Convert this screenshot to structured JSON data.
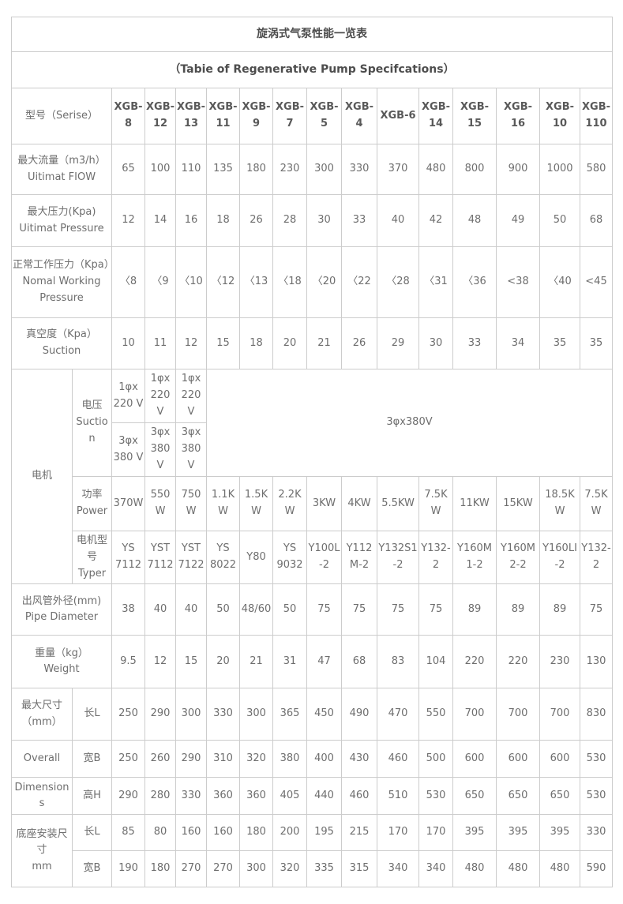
{
  "title": "旋涡式气泵性能一览表",
  "subtitle": "（Tabie of Regenerative Pump Specifcations）",
  "header": {
    "label": "型号（Serise）"
  },
  "models": [
    "XGB-8",
    "XGB-12",
    "XGB-13",
    "XGB-11",
    "XGB-9",
    "XGB-7",
    "XGB-5",
    "XGB-4",
    "XGB-6",
    "XGB-14",
    "XGB-15",
    "XGB-16",
    "XGB-10",
    "XGB-110"
  ],
  "rows": {
    "max_flow": {
      "label_cn": "最大流量（m3/h）",
      "label_en": "Uitimat FIOW",
      "values": [
        65,
        100,
        110,
        135,
        180,
        230,
        300,
        330,
        370,
        480,
        800,
        900,
        1000,
        580
      ]
    },
    "max_pressure": {
      "label_cn": "最大压力(Kpa)",
      "label_en": "Uitimat Pressure",
      "values": [
        12,
        14,
        16,
        18,
        26,
        28,
        30,
        33,
        40,
        42,
        48,
        49,
        50,
        68
      ]
    },
    "normal_pressure": {
      "label_cn": "正常工作压力（Kpa）",
      "label_en": "Nomal Working Pressure",
      "values": [
        "〈8",
        "〈9",
        "〈10",
        "〈12",
        "〈13",
        "〈18",
        "〈20",
        "〈22",
        "〈28",
        "〈31",
        "〈36",
        "<38",
        "〈40",
        "<45"
      ]
    },
    "suction": {
      "label_cn": "真空度（Kpa）",
      "label_en": "Suction",
      "values": [
        10,
        11,
        12,
        15,
        18,
        20,
        21,
        26,
        29,
        30,
        33,
        34,
        35,
        35
      ]
    },
    "pipe": {
      "label_cn": "出风管外径(mm)",
      "label_en": "Pipe Diameter",
      "values": [
        38,
        40,
        40,
        50,
        "48/60",
        50,
        75,
        75,
        75,
        75,
        89,
        89,
        89,
        75
      ]
    },
    "weight": {
      "label_cn": "重量（kg）",
      "label_en": "Weight",
      "values": [
        9.5,
        12,
        15,
        20,
        21,
        31,
        47,
        68,
        83,
        104,
        220,
        220,
        230,
        130
      ]
    }
  },
  "motor": {
    "label": "电机",
    "voltage": {
      "label_cn": "电压",
      "label_en": "Suction",
      "v220": [
        "1φx 220 V",
        "1φx 220 V",
        "1φx 220 V"
      ],
      "v380": [
        "3φx 380 V",
        "3φx 380 V",
        "3φx 380 V"
      ],
      "merged": "3φx380V"
    },
    "power": {
      "label_cn": "功率",
      "label_en": "Power",
      "values": [
        "370W",
        "550W",
        "750W",
        "1.1KW",
        "1.5KW",
        "2.2KW",
        "3KW",
        "4KW",
        "5.5KW",
        "7.5KW",
        "11KW",
        "15KW",
        "18.5KW",
        "7.5KW"
      ]
    },
    "type": {
      "label_cn": "电机型号",
      "label_en": "Typer",
      "values": [
        "YS 7112",
        "YST 7112",
        "YST 7122",
        "YS 8022",
        "Y80",
        "YS 9032",
        "Y100L-2",
        "Y112M-2",
        "Y132S1-2",
        "Y132-2",
        "Y160M1-2",
        "Y160M2-2",
        "Y160LI-2",
        "Y132-2"
      ]
    }
  },
  "dimensions": {
    "length": {
      "label_a1": "最大尺寸",
      "label_a2": "（mm）",
      "label_b": "长L",
      "values": [
        250,
        290,
        300,
        330,
        300,
        365,
        450,
        490,
        470,
        550,
        700,
        700,
        700,
        830
      ]
    },
    "width": {
      "label_a": "Overall",
      "label_b": "宽B",
      "values": [
        250,
        260,
        290,
        310,
        320,
        380,
        400,
        430,
        460,
        500,
        600,
        600,
        600,
        530
      ]
    },
    "height": {
      "label_a": "Dimensions",
      "label_b": "高H",
      "values": [
        290,
        280,
        330,
        360,
        360,
        405,
        440,
        460,
        510,
        530,
        650,
        650,
        650,
        530
      ]
    }
  },
  "base": {
    "label_line1": "底座安装尺寸",
    "label_line2": "mm",
    "length": {
      "label": "长L",
      "values": [
        85,
        80,
        160,
        160,
        180,
        200,
        195,
        215,
        170,
        170,
        395,
        395,
        395,
        330
      ]
    },
    "width": {
      "label": "宽B",
      "values": [
        190,
        180,
        270,
        270,
        300,
        320,
        335,
        315,
        340,
        340,
        480,
        480,
        480,
        590
      ]
    }
  }
}
